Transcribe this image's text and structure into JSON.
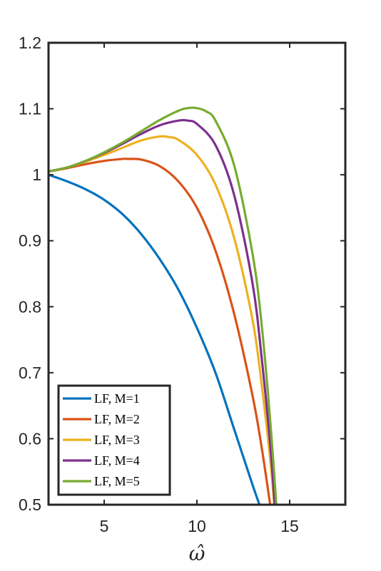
{
  "chart_data": {
    "type": "line",
    "title": "",
    "xlabel": "ω̂",
    "ylabel": "",
    "xlim": [
      2,
      18
    ],
    "ylim": [
      0.5,
      1.2
    ],
    "xticks": [
      5,
      10,
      15
    ],
    "yticks": [
      0.5,
      0.6,
      0.7,
      0.8,
      0.9,
      1,
      1.1,
      1.2
    ],
    "xtick_labels": [
      "5",
      "10",
      "15"
    ],
    "ytick_labels": [
      "0.5",
      "0.6",
      "0.7",
      "0.8",
      "0.9",
      "1",
      "1.1",
      "1.2"
    ],
    "grid": false,
    "legend_position": "bottom-left",
    "series": [
      {
        "name": "LF, M=1",
        "color": "#0072BD",
        "x": [
          2,
          3,
          4,
          5,
          6,
          7,
          8,
          9,
          10,
          11,
          12,
          13,
          13.5
        ],
        "y": [
          1.0,
          0.99,
          0.978,
          0.962,
          0.94,
          0.91,
          0.872,
          0.826,
          0.768,
          0.7,
          0.615,
          0.53,
          0.49
        ]
      },
      {
        "name": "LF, M=2",
        "color": "#D95319",
        "x": [
          2,
          3,
          4,
          5,
          6,
          6.3,
          7,
          8,
          9,
          10,
          11,
          12,
          13,
          13.5,
          14,
          14.2
        ],
        "y": [
          1.005,
          1.01,
          1.016,
          1.021,
          1.024,
          1.024,
          1.023,
          1.013,
          0.99,
          0.95,
          0.885,
          0.79,
          0.665,
          0.585,
          0.49,
          0.45
        ]
      },
      {
        "name": "LF, M=3",
        "color": "#EDB120",
        "x": [
          2,
          3,
          4,
          5,
          6,
          7,
          8,
          8.5,
          9,
          10,
          11,
          12,
          13,
          13.5,
          14,
          14.3
        ],
        "y": [
          1.005,
          1.011,
          1.02,
          1.03,
          1.041,
          1.052,
          1.058,
          1.057,
          1.053,
          1.03,
          0.985,
          0.905,
          0.78,
          0.68,
          0.555,
          0.45
        ]
      },
      {
        "name": "LF, M=4",
        "color": "#7E2F8E",
        "x": [
          2,
          3,
          4,
          5,
          6,
          7,
          8,
          9,
          9.5,
          10,
          11,
          12,
          13,
          13.5,
          14,
          14.3
        ],
        "y": [
          1.005,
          1.011,
          1.021,
          1.033,
          1.047,
          1.062,
          1.075,
          1.082,
          1.082,
          1.077,
          1.045,
          0.97,
          0.835,
          0.72,
          0.575,
          0.45
        ]
      },
      {
        "name": "LF, M=5",
        "color": "#77AC30",
        "x": [
          2,
          3,
          4,
          5,
          6,
          7,
          8,
          9,
          9.5,
          10,
          10.5,
          11,
          12,
          13,
          13.5,
          14,
          14.4
        ],
        "y": [
          1.005,
          1.011,
          1.021,
          1.034,
          1.049,
          1.066,
          1.083,
          1.097,
          1.101,
          1.101,
          1.096,
          1.082,
          1.015,
          0.88,
          0.77,
          0.61,
          0.45
        ]
      }
    ]
  }
}
